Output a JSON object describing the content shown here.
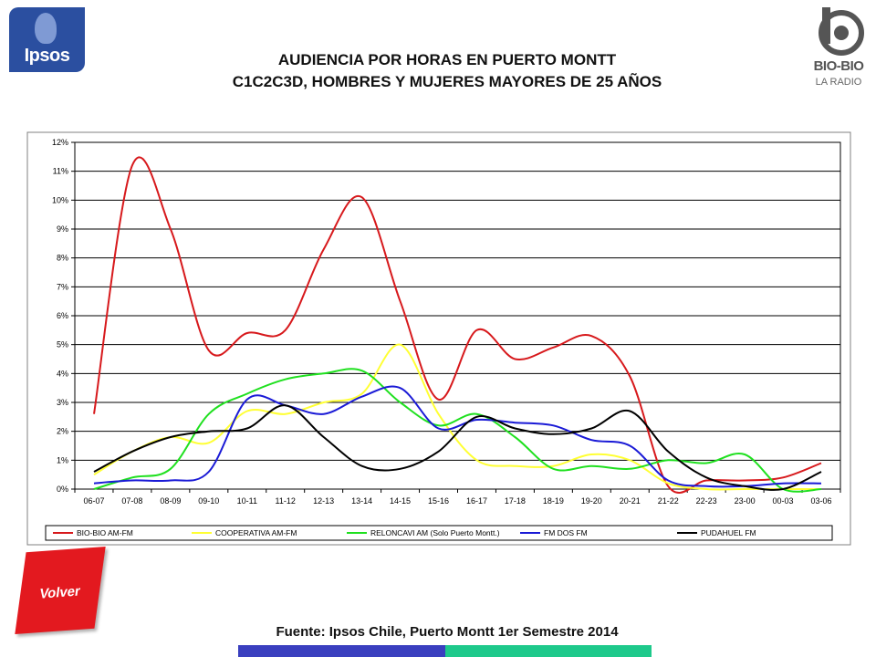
{
  "header": {
    "title_line1": "AUDIENCIA POR HORAS EN PUERTO MONTT",
    "title_line2": "C1C2C3D, HOMBRES Y MUJERES MAYORES DE 25 AÑOS"
  },
  "logos": {
    "ipsos": "Ipsos",
    "radio_name": "BIO-BIO",
    "radio_sub": "LA RADIO"
  },
  "nav": {
    "back_label": "Volver"
  },
  "footer": {
    "source": "Fuente: Ipsos Chile, Puerto Montt 1er Semestre 2014"
  },
  "colors": {
    "bar_left": "#3a3fbf",
    "bar_right": "#1ec98b",
    "volver": "#e3191f",
    "ipsos": "#2b4fa0"
  },
  "chart_data": {
    "type": "line",
    "title": "",
    "xlabel": "",
    "ylabel": "",
    "ylim": [
      0,
      12
    ],
    "y_ticks": [
      "0%",
      "1%",
      "2%",
      "3%",
      "4%",
      "5%",
      "6%",
      "7%",
      "8%",
      "9%",
      "10%",
      "11%",
      "12%"
    ],
    "grid": true,
    "legend_position": "bottom",
    "categories": [
      "06-07",
      "07-08",
      "08-09",
      "09-10",
      "10-11",
      "11-12",
      "12-13",
      "13-14",
      "14-15",
      "15-16",
      "16-17",
      "17-18",
      "18-19",
      "19-20",
      "20-21",
      "21-22",
      "22-23",
      "23-00",
      "00-03",
      "03-06"
    ],
    "series": [
      {
        "name": "BIO-BIO AM-FM",
        "color": "#d7191c",
        "values": [
          2.6,
          11.2,
          9.0,
          4.8,
          5.4,
          5.5,
          8.3,
          10.1,
          6.5,
          3.1,
          5.5,
          4.5,
          4.9,
          5.3,
          3.9,
          0.1,
          0.3,
          0.3,
          0.4,
          0.9
        ]
      },
      {
        "name": "COOPERATIVA AM-FM",
        "color": "#ffff33",
        "values": [
          0.5,
          1.3,
          1.8,
          1.6,
          2.7,
          2.6,
          3.0,
          3.3,
          5.0,
          2.6,
          1.0,
          0.8,
          0.8,
          1.2,
          1.0,
          0.2,
          0.0,
          0.0,
          0.0,
          0.0
        ]
      },
      {
        "name": "RELONCAVI AM (Solo Puerto Montt.)",
        "color": "#1fe01f",
        "values": [
          0.0,
          0.4,
          0.7,
          2.6,
          3.3,
          3.8,
          4.0,
          4.1,
          3.0,
          2.2,
          2.6,
          1.8,
          0.7,
          0.8,
          0.7,
          1.0,
          0.9,
          1.2,
          0.0,
          0.0
        ]
      },
      {
        "name": "FM DOS FM",
        "color": "#1a1ad6",
        "values": [
          0.2,
          0.3,
          0.3,
          0.6,
          3.1,
          2.9,
          2.6,
          3.2,
          3.5,
          2.1,
          2.4,
          2.3,
          2.2,
          1.7,
          1.5,
          0.3,
          0.1,
          0.1,
          0.2,
          0.2
        ]
      },
      {
        "name": "PUDAHUEL FM",
        "color": "#000000",
        "values": [
          0.6,
          1.3,
          1.8,
          2.0,
          2.1,
          2.9,
          1.8,
          0.8,
          0.7,
          1.3,
          2.5,
          2.1,
          1.9,
          2.1,
          2.7,
          1.3,
          0.4,
          0.1,
          0.0,
          0.6
        ]
      }
    ]
  }
}
